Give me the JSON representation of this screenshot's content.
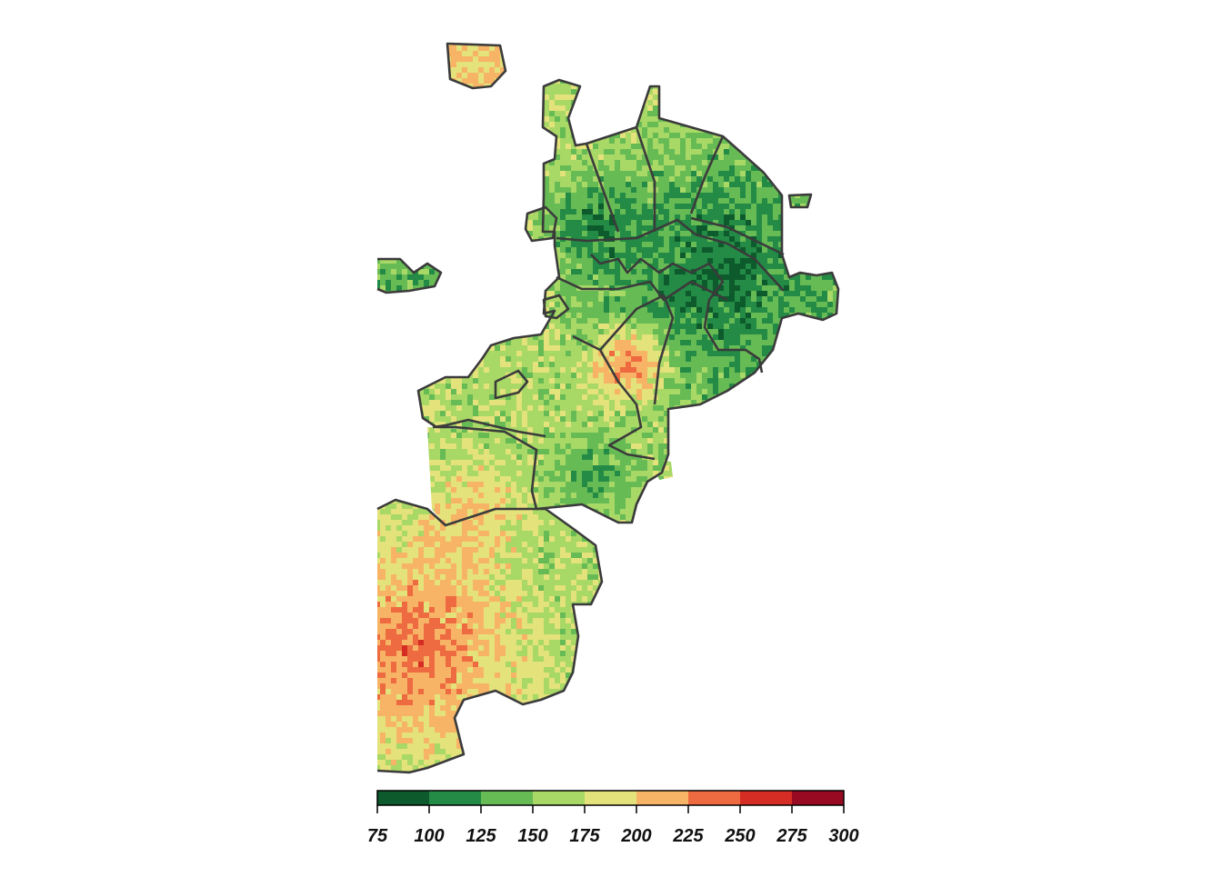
{
  "map": {
    "type": "raster-choropleth",
    "colors": [
      "#0d5a2c",
      "#238b45",
      "#67bb55",
      "#a8d866",
      "#e4e27b",
      "#f8b466",
      "#ee6a40",
      "#d52d23",
      "#980a22"
    ],
    "boundary_color": "#3b3b3b",
    "background": "#ffffff"
  },
  "legend": {
    "breaks": [
      75,
      100,
      125,
      150,
      175,
      200,
      225,
      250,
      275,
      300
    ],
    "labels": [
      "75",
      "100",
      "125",
      "150",
      "175",
      "200",
      "225",
      "250",
      "275",
      "300"
    ],
    "colors": [
      "#0d5a2c",
      "#238b45",
      "#67bb55",
      "#a8d866",
      "#e4e27b",
      "#f8b466",
      "#ee6a40",
      "#d52d23",
      "#980a22"
    ]
  }
}
